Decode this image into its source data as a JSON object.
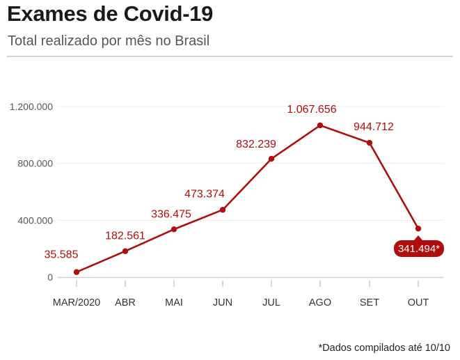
{
  "header": {
    "title": "Exames de Covid-19",
    "subtitle": "Total realizado por mês no Brasil"
  },
  "footnote": "*Dados compilados até 10/10",
  "colors": {
    "series": "#b00d0d",
    "grid": "#ececec",
    "axis": "#d0d0d0",
    "tick_text": "#555555",
    "label_text": "#b00d0d",
    "highlight_bg": "#b00d0d",
    "highlight_text": "#ffffff"
  },
  "chart_data": {
    "type": "line",
    "categories": [
      "MAR/2020",
      "ABR",
      "MAI",
      "JUN",
      "JUL",
      "AGO",
      "SET",
      "OUT"
    ],
    "series": [
      {
        "values": [
          35585,
          182561,
          336475,
          473374,
          832239,
          1067656,
          944712,
          341494
        ],
        "labels": [
          "35.585",
          "182.561",
          "336.475",
          "473.374",
          "832.239",
          "1.067.656",
          "944.712",
          "341.494*"
        ]
      }
    ],
    "yticks": [
      0,
      400000,
      800000,
      1200000
    ],
    "ytick_labels": [
      "0",
      "400.000",
      "800.000",
      "1.200.000"
    ],
    "ylim": [
      0,
      1200000
    ],
    "grid": true,
    "legend": "none",
    "highlight_last_point": true
  }
}
